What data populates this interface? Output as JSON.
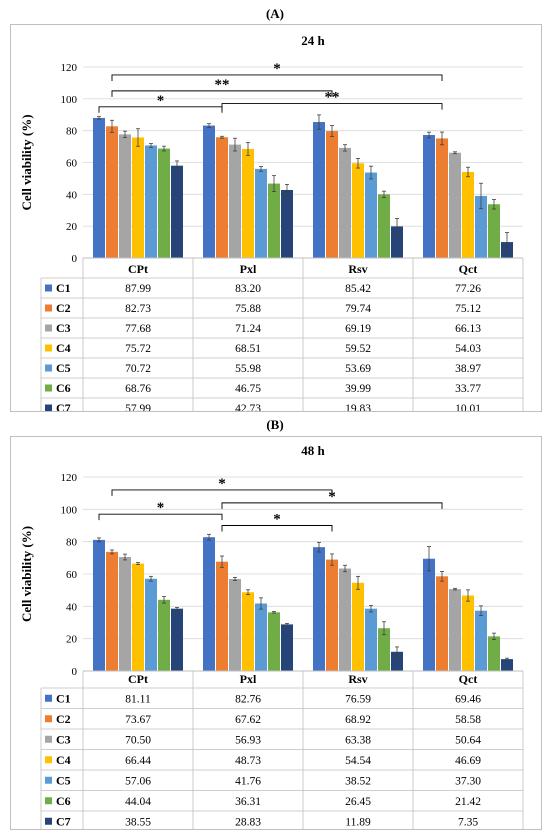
{
  "panels": [
    {
      "label": "(A)",
      "chart_data": {
        "type": "bar",
        "title": "24 h",
        "ylabel": "Cell viability (%)",
        "xlabel": "",
        "ylim": [
          0,
          120
        ],
        "yticks": [
          0,
          20,
          40,
          60,
          80,
          100,
          120
        ],
        "grid": true,
        "categories": [
          "CPt",
          "Pxl",
          "Rsv",
          "Qct"
        ],
        "series": [
          {
            "name": "C1",
            "color": "#4472C4",
            "values": [
              87.99,
              83.2,
              85.42,
              77.26
            ],
            "errors": [
              0.8,
              1.2,
              4.5,
              1.8
            ],
            "labels": [
              "87.99",
              "83.20",
              "85.42",
              "77.26"
            ]
          },
          {
            "name": "C2",
            "color": "#ED7D31",
            "values": [
              82.73,
              75.88,
              79.74,
              75.12
            ],
            "errors": [
              3.8,
              0.6,
              3.5,
              4.0
            ],
            "labels": [
              "82.73",
              "75.88",
              "79.74",
              "75.12"
            ]
          },
          {
            "name": "C3",
            "color": "#A5A5A5",
            "values": [
              77.68,
              71.24,
              69.19,
              66.13
            ],
            "errors": [
              2.0,
              4.0,
              2.0,
              0.6
            ],
            "labels": [
              "77.68",
              "71.24",
              "69.19",
              "66.13"
            ]
          },
          {
            "name": "C4",
            "color": "#FFC000",
            "values": [
              75.72,
              68.51,
              59.52,
              54.03
            ],
            "errors": [
              5.5,
              4.0,
              3.0,
              3.0
            ],
            "labels": [
              "75.72",
              "68.51",
              "59.52",
              "54.03"
            ]
          },
          {
            "name": "C5",
            "color": "#5B9BD5",
            "values": [
              70.72,
              55.98,
              53.69,
              38.97
            ],
            "errors": [
              1.2,
              1.5,
              4.0,
              8.0
            ],
            "labels": [
              "70.72",
              "55.98",
              "53.69",
              "38.97"
            ]
          },
          {
            "name": "C6",
            "color": "#70AD47",
            "values": [
              68.76,
              46.75,
              39.99,
              33.77
            ],
            "errors": [
              1.5,
              5.0,
              2.0,
              3.0
            ],
            "labels": [
              "68.76",
              "46.75",
              "39.99",
              "33.77"
            ]
          },
          {
            "name": "C7",
            "color": "#264478",
            "values": [
              57.99,
              42.73,
              19.83,
              10.01
            ],
            "errors": [
              3.0,
              3.5,
              5.0,
              6.0
            ],
            "labels": [
              "57.99",
              "42.73",
              "19.83",
              "10.01"
            ]
          }
        ],
        "significance": [
          {
            "from": 0,
            "to": 1,
            "y": 95,
            "label": "*"
          },
          {
            "from": 0,
            "to": 3,
            "y": 115,
            "label": "*"
          },
          {
            "from": 0,
            "to": 2,
            "y": 105,
            "label": "**"
          },
          {
            "from": 1,
            "to": 3,
            "y": 97,
            "label": "**"
          }
        ]
      }
    },
    {
      "label": "(B)",
      "chart_data": {
        "type": "bar",
        "title": "48 h",
        "ylabel": "Cell viability (%)",
        "xlabel": "",
        "ylim": [
          0,
          120
        ],
        "yticks": [
          0,
          20,
          40,
          60,
          80,
          100,
          120
        ],
        "grid": true,
        "categories": [
          "CPt",
          "Pxl",
          "Rsv",
          "Qct"
        ],
        "series": [
          {
            "name": "C1",
            "color": "#4472C4",
            "values": [
              81.11,
              82.76,
              76.59,
              69.46
            ],
            "errors": [
              1.2,
              1.8,
              3.0,
              7.5
            ],
            "labels": [
              "81.11",
              "82.76",
              "76.59",
              "69.46"
            ]
          },
          {
            "name": "C2",
            "color": "#ED7D31",
            "values": [
              73.67,
              67.62,
              68.92,
              58.58
            ],
            "errors": [
              1.2,
              3.5,
              3.5,
              3.0
            ],
            "labels": [
              "73.67",
              "67.62",
              "68.92",
              "58.58"
            ]
          },
          {
            "name": "C3",
            "color": "#A5A5A5",
            "values": [
              70.5,
              56.93,
              63.38,
              50.64
            ],
            "errors": [
              1.8,
              1.0,
              2.0,
              0.5
            ],
            "labels": [
              "70.50",
              "56.93",
              "63.38",
              "50.64"
            ]
          },
          {
            "name": "C4",
            "color": "#FFC000",
            "values": [
              66.44,
              48.73,
              54.54,
              46.69
            ],
            "errors": [
              0.6,
              1.5,
              4.0,
              3.5
            ],
            "labels": [
              "66.44",
              "48.73",
              "54.54",
              "46.69"
            ]
          },
          {
            "name": "C5",
            "color": "#5B9BD5",
            "values": [
              57.06,
              41.76,
              38.52,
              37.3
            ],
            "errors": [
              1.5,
              3.5,
              2.0,
              3.0
            ],
            "labels": [
              "57.06",
              "41.76",
              "38.52",
              "37.30"
            ]
          },
          {
            "name": "C6",
            "color": "#70AD47",
            "values": [
              44.04,
              36.31,
              26.45,
              21.42
            ],
            "errors": [
              2.0,
              0.5,
              4.0,
              2.0
            ],
            "labels": [
              "44.04",
              "36.31",
              "26.45",
              "21.42"
            ]
          },
          {
            "name": "C7",
            "color": "#264478",
            "values": [
              38.55,
              28.83,
              11.89,
              7.35
            ],
            "errors": [
              0.8,
              0.6,
              3.0,
              0.6
            ],
            "labels": [
              "38.55",
              "28.83",
              "11.89",
              "7.35"
            ]
          }
        ],
        "significance": [
          {
            "from": 0,
            "to": 2,
            "y": 112,
            "label": "*"
          },
          {
            "from": 0,
            "to": 1,
            "y": 97,
            "label": "*"
          },
          {
            "from": 1,
            "to": 3,
            "y": 104,
            "label": "*"
          },
          {
            "from": 1,
            "to": 2,
            "y": 90,
            "label": "*"
          }
        ]
      }
    }
  ]
}
